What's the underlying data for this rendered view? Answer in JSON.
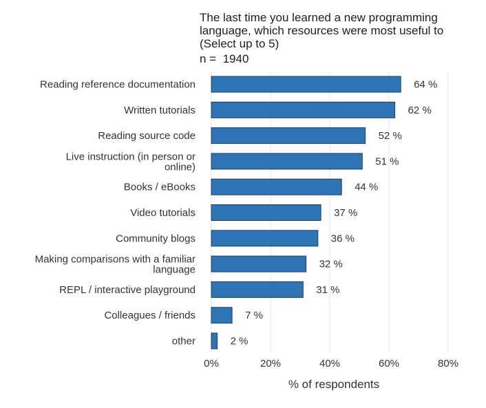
{
  "title_lines": [
    "The last time you learned a new programming",
    "language, which resources were most useful to",
    "(Select up to 5)"
  ],
  "sample": {
    "prefix": "n = ",
    "value": "1940"
  },
  "chart_data": {
    "type": "bar",
    "orientation": "horizontal",
    "title": "The last time you learned a new programming language, which resources were most useful to (Select up to 5)",
    "categories": [
      [
        "Reading reference documentation"
      ],
      [
        "Written tutorials"
      ],
      [
        "Reading source code"
      ],
      [
        "Live instruction (in person or",
        "online)"
      ],
      [
        "Books / eBooks"
      ],
      [
        "Video tutorials"
      ],
      [
        "Community blogs"
      ],
      [
        "Making comparisons with a familiar",
        "language"
      ],
      [
        "REPL / interactive playground"
      ],
      [
        "Colleagues / friends"
      ],
      [
        "other"
      ]
    ],
    "values": [
      64,
      62,
      52,
      51,
      44,
      37,
      36,
      32,
      31,
      7,
      2
    ],
    "value_labels": [
      "64 %",
      "62 %",
      "52 %",
      "51 %",
      "44 %",
      "37 %",
      "36 %",
      "32 %",
      "31 %",
      "7 %",
      "2 %"
    ],
    "xlabel": "% of respondents",
    "xlim": [
      0,
      80
    ],
    "xticks": [
      0,
      20,
      40,
      60,
      80
    ],
    "xtick_labels": [
      "0%",
      "20%",
      "40%",
      "60%",
      "80%"
    ],
    "grid": true,
    "bar_color": "#2e75b6",
    "bar_edge_color": "#1f3f5c"
  }
}
